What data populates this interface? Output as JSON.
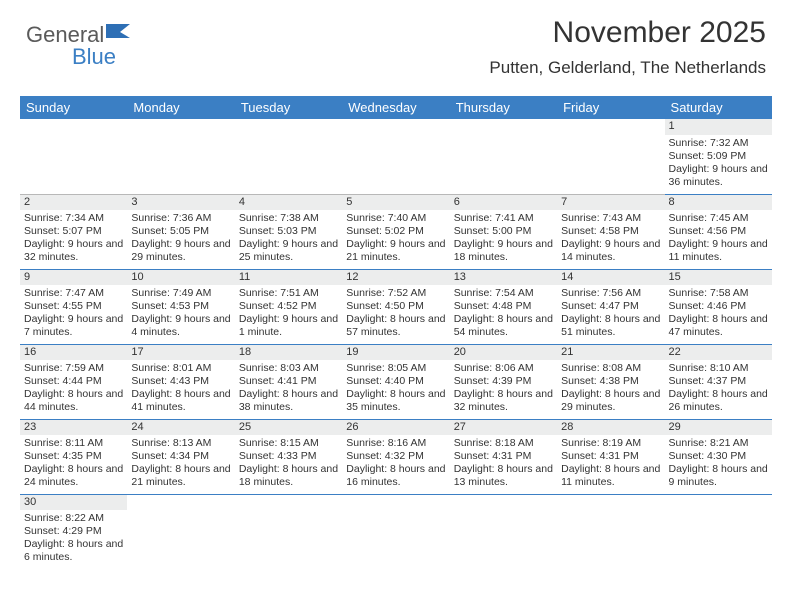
{
  "logo": {
    "part1": "General",
    "part2": "Blue",
    "shape_color": "#2e6fb5"
  },
  "title": "November 2025",
  "subtitle": "Putten, Gelderland, The Netherlands",
  "colors": {
    "header_bg": "#3b7fc4",
    "header_text": "#ffffff",
    "daynum_bg": "#eceded",
    "border_gray": "#b8b8b8",
    "border_blue": "#3b7fc4",
    "text": "#333333",
    "background": "#ffffff"
  },
  "font_sizes": {
    "title": 30,
    "subtitle": 17,
    "dayheader": 13,
    "daynum": 11,
    "body": 10.5
  },
  "day_headers": [
    "Sunday",
    "Monday",
    "Tuesday",
    "Wednesday",
    "Thursday",
    "Friday",
    "Saturday"
  ],
  "weeks": [
    [
      null,
      null,
      null,
      null,
      null,
      null,
      {
        "n": "1",
        "sr": "Sunrise: 7:32 AM",
        "ss": "Sunset: 5:09 PM",
        "dl": "Daylight: 9 hours and 36 minutes."
      }
    ],
    [
      {
        "n": "2",
        "sr": "Sunrise: 7:34 AM",
        "ss": "Sunset: 5:07 PM",
        "dl": "Daylight: 9 hours and 32 minutes."
      },
      {
        "n": "3",
        "sr": "Sunrise: 7:36 AM",
        "ss": "Sunset: 5:05 PM",
        "dl": "Daylight: 9 hours and 29 minutes."
      },
      {
        "n": "4",
        "sr": "Sunrise: 7:38 AM",
        "ss": "Sunset: 5:03 PM",
        "dl": "Daylight: 9 hours and 25 minutes."
      },
      {
        "n": "5",
        "sr": "Sunrise: 7:40 AM",
        "ss": "Sunset: 5:02 PM",
        "dl": "Daylight: 9 hours and 21 minutes."
      },
      {
        "n": "6",
        "sr": "Sunrise: 7:41 AM",
        "ss": "Sunset: 5:00 PM",
        "dl": "Daylight: 9 hours and 18 minutes."
      },
      {
        "n": "7",
        "sr": "Sunrise: 7:43 AM",
        "ss": "Sunset: 4:58 PM",
        "dl": "Daylight: 9 hours and 14 minutes."
      },
      {
        "n": "8",
        "sr": "Sunrise: 7:45 AM",
        "ss": "Sunset: 4:56 PM",
        "dl": "Daylight: 9 hours and 11 minutes."
      }
    ],
    [
      {
        "n": "9",
        "sr": "Sunrise: 7:47 AM",
        "ss": "Sunset: 4:55 PM",
        "dl": "Daylight: 9 hours and 7 minutes."
      },
      {
        "n": "10",
        "sr": "Sunrise: 7:49 AM",
        "ss": "Sunset: 4:53 PM",
        "dl": "Daylight: 9 hours and 4 minutes."
      },
      {
        "n": "11",
        "sr": "Sunrise: 7:51 AM",
        "ss": "Sunset: 4:52 PM",
        "dl": "Daylight: 9 hours and 1 minute."
      },
      {
        "n": "12",
        "sr": "Sunrise: 7:52 AM",
        "ss": "Sunset: 4:50 PM",
        "dl": "Daylight: 8 hours and 57 minutes."
      },
      {
        "n": "13",
        "sr": "Sunrise: 7:54 AM",
        "ss": "Sunset: 4:48 PM",
        "dl": "Daylight: 8 hours and 54 minutes."
      },
      {
        "n": "14",
        "sr": "Sunrise: 7:56 AM",
        "ss": "Sunset: 4:47 PM",
        "dl": "Daylight: 8 hours and 51 minutes."
      },
      {
        "n": "15",
        "sr": "Sunrise: 7:58 AM",
        "ss": "Sunset: 4:46 PM",
        "dl": "Daylight: 8 hours and 47 minutes."
      }
    ],
    [
      {
        "n": "16",
        "sr": "Sunrise: 7:59 AM",
        "ss": "Sunset: 4:44 PM",
        "dl": "Daylight: 8 hours and 44 minutes."
      },
      {
        "n": "17",
        "sr": "Sunrise: 8:01 AM",
        "ss": "Sunset: 4:43 PM",
        "dl": "Daylight: 8 hours and 41 minutes."
      },
      {
        "n": "18",
        "sr": "Sunrise: 8:03 AM",
        "ss": "Sunset: 4:41 PM",
        "dl": "Daylight: 8 hours and 38 minutes."
      },
      {
        "n": "19",
        "sr": "Sunrise: 8:05 AM",
        "ss": "Sunset: 4:40 PM",
        "dl": "Daylight: 8 hours and 35 minutes."
      },
      {
        "n": "20",
        "sr": "Sunrise: 8:06 AM",
        "ss": "Sunset: 4:39 PM",
        "dl": "Daylight: 8 hours and 32 minutes."
      },
      {
        "n": "21",
        "sr": "Sunrise: 8:08 AM",
        "ss": "Sunset: 4:38 PM",
        "dl": "Daylight: 8 hours and 29 minutes."
      },
      {
        "n": "22",
        "sr": "Sunrise: 8:10 AM",
        "ss": "Sunset: 4:37 PM",
        "dl": "Daylight: 8 hours and 26 minutes."
      }
    ],
    [
      {
        "n": "23",
        "sr": "Sunrise: 8:11 AM",
        "ss": "Sunset: 4:35 PM",
        "dl": "Daylight: 8 hours and 24 minutes."
      },
      {
        "n": "24",
        "sr": "Sunrise: 8:13 AM",
        "ss": "Sunset: 4:34 PM",
        "dl": "Daylight: 8 hours and 21 minutes."
      },
      {
        "n": "25",
        "sr": "Sunrise: 8:15 AM",
        "ss": "Sunset: 4:33 PM",
        "dl": "Daylight: 8 hours and 18 minutes."
      },
      {
        "n": "26",
        "sr": "Sunrise: 8:16 AM",
        "ss": "Sunset: 4:32 PM",
        "dl": "Daylight: 8 hours and 16 minutes."
      },
      {
        "n": "27",
        "sr": "Sunrise: 8:18 AM",
        "ss": "Sunset: 4:31 PM",
        "dl": "Daylight: 8 hours and 13 minutes."
      },
      {
        "n": "28",
        "sr": "Sunrise: 8:19 AM",
        "ss": "Sunset: 4:31 PM",
        "dl": "Daylight: 8 hours and 11 minutes."
      },
      {
        "n": "29",
        "sr": "Sunrise: 8:21 AM",
        "ss": "Sunset: 4:30 PM",
        "dl": "Daylight: 8 hours and 9 minutes."
      }
    ],
    [
      {
        "n": "30",
        "sr": "Sunrise: 8:22 AM",
        "ss": "Sunset: 4:29 PM",
        "dl": "Daylight: 8 hours and 6 minutes."
      },
      null,
      null,
      null,
      null,
      null,
      null
    ]
  ]
}
